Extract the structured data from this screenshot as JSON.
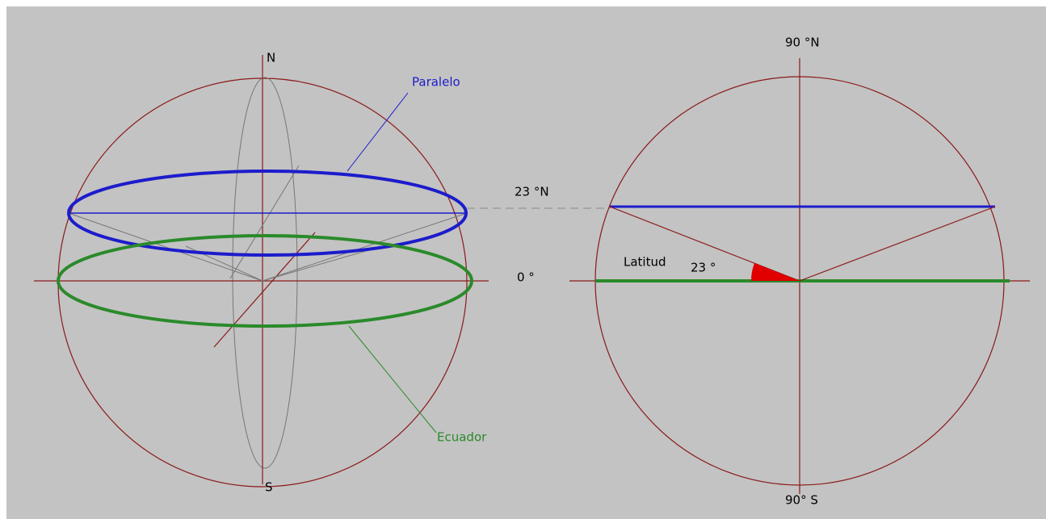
{
  "left_sphere": {
    "north": "N",
    "south": "S",
    "parallel": "Paralelo",
    "equator": "Ecuador"
  },
  "middle": {
    "parallel_latitude": "23 °N",
    "equator_latitude": "0 °"
  },
  "right_section": {
    "north_pole": "90 °N",
    "south_pole": "90° S",
    "latitude": "Latitud",
    "angle": "23 °"
  }
}
